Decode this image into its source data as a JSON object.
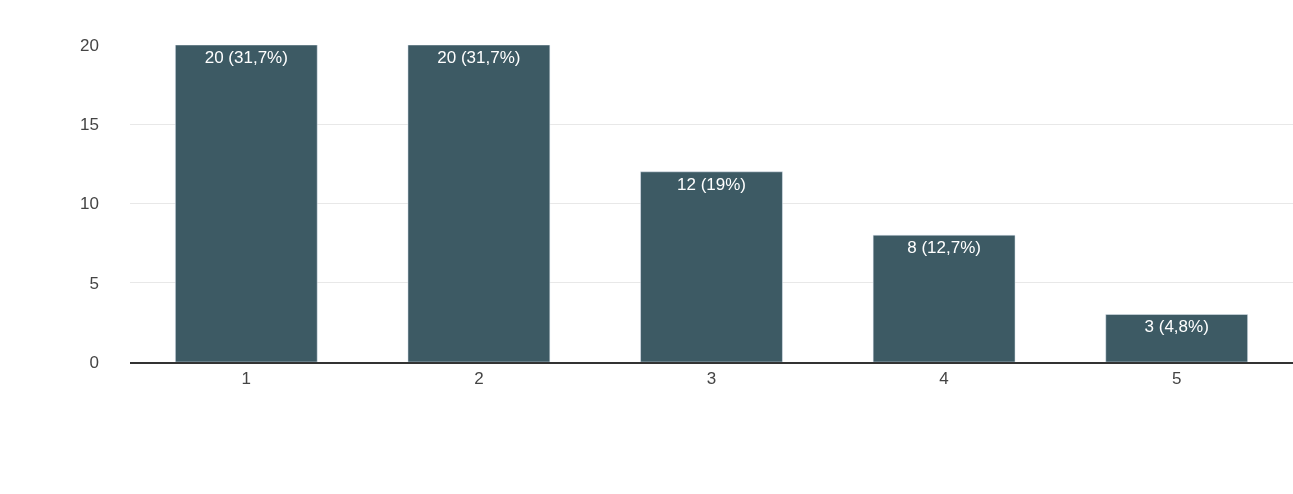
{
  "chart_data": {
    "type": "bar",
    "categories": [
      "1",
      "2",
      "3",
      "4",
      "5"
    ],
    "values": [
      20,
      20,
      12,
      8,
      3
    ],
    "value_labels": [
      "20 (31,7%)",
      "20 (31,7%)",
      "12 (19%)",
      "8 (12,7%)",
      "3 (4,8%)"
    ],
    "color": "#3d5a64",
    "ylim": [
      0,
      20
    ],
    "yticks": [
      0,
      5,
      10,
      15,
      20
    ],
    "grid": "y",
    "legend": false
  }
}
